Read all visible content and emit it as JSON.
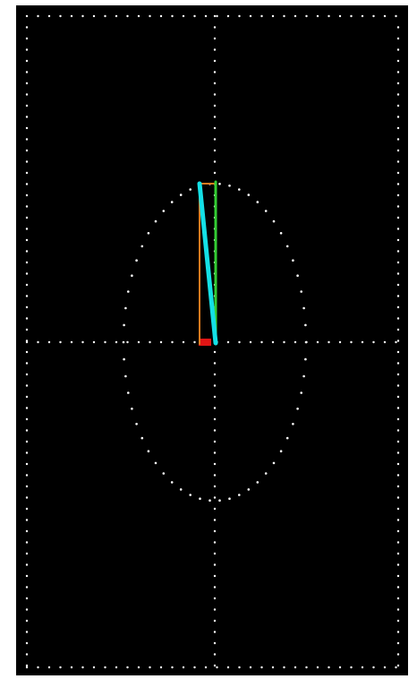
{
  "scene": {
    "background_color": "#000000",
    "border_color": "#ffffff",
    "dots_color": "#ffffff",
    "vectors": [
      {
        "name": "orange",
        "color": "#e07a1e"
      },
      {
        "name": "green",
        "color": "#33cc33"
      },
      {
        "name": "cyan",
        "color": "#14e0e6"
      }
    ],
    "origin_marker_color": "#e01515"
  }
}
